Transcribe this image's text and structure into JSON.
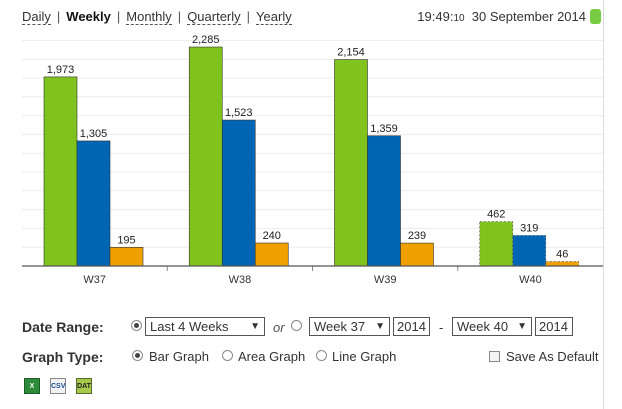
{
  "period_tabs": [
    {
      "label": "Daily",
      "active": false
    },
    {
      "label": "Weekly",
      "active": true
    },
    {
      "label": "Monthly",
      "active": false
    },
    {
      "label": "Quarterly",
      "active": false
    },
    {
      "label": "Yearly",
      "active": false
    }
  ],
  "header": {
    "time": "19:49:",
    "seconds": "10",
    "date": "30 September 2014",
    "status_color": "#77cc44"
  },
  "chart_data": {
    "type": "bar",
    "categories": [
      "W37",
      "W38",
      "W39",
      "W40"
    ],
    "series": [
      {
        "color": "#80c31c",
        "values": [
          1973,
          2285,
          2154,
          462
        ]
      },
      {
        "color": "#0066b3",
        "values": [
          1305,
          1523,
          1359,
          319
        ]
      },
      {
        "color": "#f0a000",
        "values": [
          195,
          240,
          239,
          46
        ]
      }
    ],
    "value_labels": [
      [
        "1,973",
        "1,305",
        "195"
      ],
      [
        "2,285",
        "1,523",
        "240"
      ],
      [
        "2,154",
        "1,359",
        "239"
      ],
      [
        "462",
        "319",
        "46"
      ]
    ],
    "partial_category": "W40",
    "ylim": [
      0,
      2400
    ],
    "grid": true,
    "legend": "none"
  },
  "date_range": {
    "label": "Date Range:",
    "preset": "Last 4 Weeks",
    "or_text": "or",
    "from_week": "Week 37",
    "from_year": "2014",
    "dash": "-",
    "to_week": "Week 40",
    "to_year": "2014"
  },
  "graph_type": {
    "label": "Graph Type:",
    "options": [
      "Bar Graph",
      "Area Graph",
      "Line Graph"
    ],
    "selected": "Bar Graph",
    "save_default": "Save As Default"
  },
  "export": {
    "excel": "X",
    "csv": "CSV",
    "other": "DAT"
  }
}
